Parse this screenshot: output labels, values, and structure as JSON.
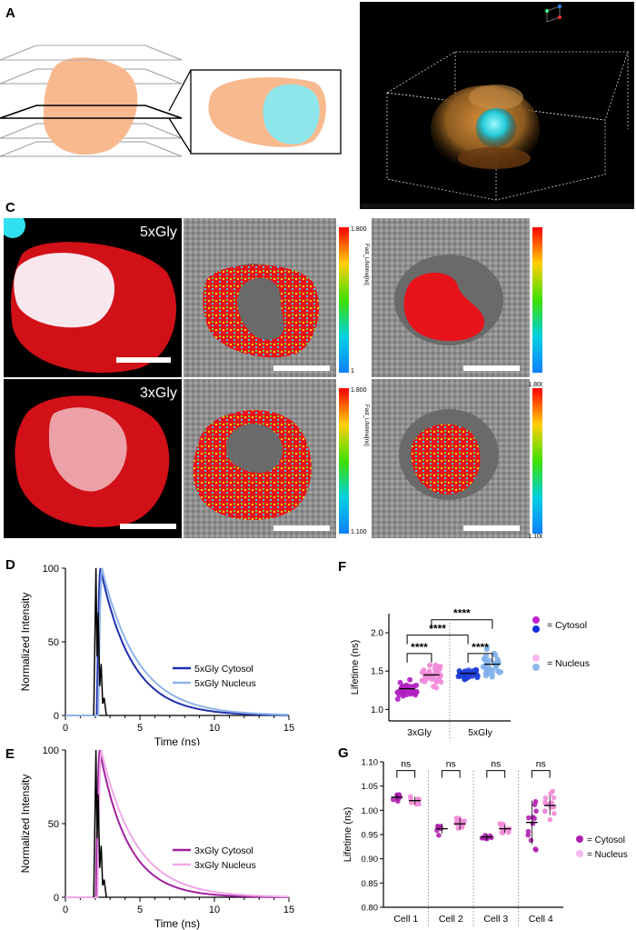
{
  "panels": {
    "a": "A",
    "b": "B",
    "c": "C",
    "d": "D",
    "e": "E",
    "f": "F",
    "g": "G"
  },
  "micro": {
    "label_top": "5xGly",
    "label_bottom": "3xGly",
    "colorbar_top_max": "1.800",
    "colorbar_top_min": "1",
    "colorbar_max": "1.800",
    "colorbar_min": "1.100",
    "colorbar_title": "Fast_Lifetime[ns]",
    "colors": {
      "cell_red": "#e8121a",
      "nucleus_cyan": "#8ee6ea",
      "cytosol_peach": "#f9b98f"
    }
  },
  "chart_data": [
    {
      "id": "D",
      "type": "line",
      "xlabel": "Time (ns)",
      "ylabel": "Normalized Intensity",
      "xlim": [
        0,
        15
      ],
      "ylim": [
        0,
        100
      ],
      "xticks": [
        "0",
        "5",
        "10",
        "15"
      ],
      "yticks": [
        "0",
        "50",
        "100"
      ],
      "series": [
        {
          "name": "5xGly Cytosol",
          "color": "#1f2fb0",
          "peak_x": 2.35,
          "tau": 2.1
        },
        {
          "name": "5xGly Nucleus",
          "color": "#8fb4ea",
          "peak_x": 2.45,
          "tau": 2.4
        },
        {
          "name": "",
          "color": "#000000",
          "irf": true,
          "peak_x": 2.0
        }
      ]
    },
    {
      "id": "E",
      "type": "line",
      "xlabel": "Time (ns)",
      "ylabel": "Normalized Intensity",
      "xlim": [
        0,
        15
      ],
      "ylim": [
        0,
        100
      ],
      "xticks": [
        "0",
        "5",
        "10",
        "15"
      ],
      "yticks": [
        "0",
        "50",
        "100"
      ],
      "series": [
        {
          "name": "3xGly Cytosol",
          "color": "#a020a0",
          "peak_x": 2.3,
          "tau": 1.9
        },
        {
          "name": "3xGly Nucleus",
          "color": "#f0a8e8",
          "peak_x": 2.4,
          "tau": 2.3
        },
        {
          "name": "",
          "color": "#000000",
          "irf": true,
          "peak_x": 2.0
        }
      ]
    },
    {
      "id": "F",
      "type": "scatter",
      "ylabel": "Lifetime (ns)",
      "ylim": [
        0.85,
        2.25
      ],
      "yticks": [
        "1.0",
        "1.5",
        "2.0"
      ],
      "categories": [
        "3xGly",
        "5xGly"
      ],
      "groups": [
        {
          "cat": "3xGly",
          "compartment": "Cytosol",
          "color": "#b020c0",
          "mean": 1.27,
          "sd": 0.08,
          "n": 34
        },
        {
          "cat": "3xGly",
          "compartment": "Nucleus",
          "color": "#f08ad8",
          "mean": 1.45,
          "sd": 0.11,
          "n": 34
        },
        {
          "cat": "5xGly",
          "compartment": "Cytosol",
          "color": "#1e3fd8",
          "mean": 1.47,
          "sd": 0.05,
          "n": 34
        },
        {
          "cat": "5xGly",
          "compartment": "Nucleus",
          "color": "#7fb0ea",
          "mean": 1.59,
          "sd": 0.13,
          "n": 34
        }
      ],
      "significance": [
        "****",
        "****",
        "****",
        "****"
      ],
      "legend": [
        {
          "label": "= Cytosol",
          "colors": [
            "#c020d0",
            "#1030e0"
          ]
        },
        {
          "label": "= Nucleus",
          "colors": [
            "#f5b8f0",
            "#8fb8ee"
          ]
        }
      ]
    },
    {
      "id": "G",
      "type": "scatter",
      "ylabel": "Lifetime (ns)",
      "ylim": [
        0.8,
        1.1
      ],
      "yticks": [
        "0.80",
        "0.85",
        "0.90",
        "0.95",
        "1.00",
        "1.05",
        "1.10"
      ],
      "categories": [
        "Cell 1",
        "Cell 2",
        "Cell 3",
        "Cell 4"
      ],
      "groups": [
        {
          "cat": "Cell 1",
          "compartment": "Cytosol",
          "color": "#b020b0",
          "mean": 1.027,
          "sd": 0.005,
          "n": 9
        },
        {
          "cat": "Cell 1",
          "compartment": "Nucleus",
          "color": "#f08ad8",
          "mean": 1.02,
          "sd": 0.008,
          "n": 9
        },
        {
          "cat": "Cell 2",
          "compartment": "Cytosol",
          "color": "#b020b0",
          "mean": 0.962,
          "sd": 0.01,
          "n": 6
        },
        {
          "cat": "Cell 2",
          "compartment": "Nucleus",
          "color": "#f08ad8",
          "mean": 0.972,
          "sd": 0.012,
          "n": 14
        },
        {
          "cat": "Cell 3",
          "compartment": "Cytosol",
          "color": "#b020b0",
          "mean": 0.945,
          "sd": 0.007,
          "n": 8
        },
        {
          "cat": "Cell 3",
          "compartment": "Nucleus",
          "color": "#f08ad8",
          "mean": 0.962,
          "sd": 0.008,
          "n": 11
        },
        {
          "cat": "Cell 4",
          "compartment": "Cytosol",
          "color": "#b020b0",
          "mean": 0.975,
          "sd": 0.045,
          "n": 12
        },
        {
          "cat": "Cell 4",
          "compartment": "Nucleus",
          "color": "#f08ad8",
          "mean": 1.01,
          "sd": 0.02,
          "n": 14
        }
      ],
      "significance": [
        "ns",
        "ns",
        "ns",
        "ns"
      ],
      "legend": [
        {
          "label": "= Cytosol",
          "color": "#b020b0"
        },
        {
          "label": "= Nucleus",
          "color": "#f5b8f0"
        }
      ]
    }
  ]
}
